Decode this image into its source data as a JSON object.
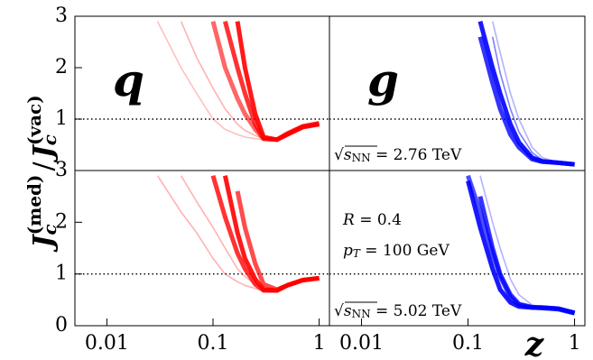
{
  "figure": {
    "ylabel": {
      "num": "J",
      "num_sub": "c",
      "num_sup": "(med)",
      "slash": "/",
      "den": "J",
      "den_sub": "c",
      "den_sup": "(vac)"
    },
    "xlabel": "z"
  },
  "chart_data": [
    {
      "type": "line",
      "label": "q",
      "label_color": "#ff0000",
      "xscale": "log",
      "xlim": [
        0.005,
        1.25
      ],
      "ylim": [
        0,
        3
      ],
      "yticks": [
        1,
        2,
        3
      ],
      "hline": 1,
      "x": [
        0.02,
        0.03,
        0.05,
        0.07,
        0.1,
        0.13,
        0.17,
        0.2,
        0.25,
        0.3,
        0.4,
        0.5,
        0.7,
        1
      ],
      "series": [
        {
          "color": "#ff0000",
          "alpha": 0.9,
          "values": [
            null,
            null,
            null,
            null,
            null,
            null,
            2.9,
            2.0,
            1.1,
            0.65,
            0.6,
            0.7,
            0.85,
            0.9
          ]
        },
        {
          "color": "#ff0000",
          "alpha": 0.8,
          "values": [
            null,
            null,
            null,
            null,
            null,
            2.9,
            2.0,
            1.5,
            0.9,
            0.62,
            0.6,
            0.72,
            0.86,
            0.92
          ]
        },
        {
          "color": "#ff0000",
          "alpha": 0.6,
          "values": [
            null,
            null,
            null,
            null,
            2.9,
            2.0,
            1.4,
            1.1,
            0.8,
            0.62,
            0.6,
            0.7,
            0.84,
            0.9
          ]
        },
        {
          "color": "#ff0000",
          "alpha": 0.3,
          "values": [
            null,
            null,
            2.9,
            2.2,
            1.6,
            1.2,
            0.9,
            0.78,
            0.68,
            0.62,
            0.62,
            0.7,
            0.85,
            0.9
          ]
        },
        {
          "color": "#ff0000",
          "alpha": 0.25,
          "values": [
            null,
            2.9,
            2.0,
            1.5,
            1.0,
            0.8,
            0.7,
            0.65,
            0.62,
            0.6,
            0.62,
            0.72,
            0.86,
            0.92
          ]
        }
      ]
    },
    {
      "type": "line",
      "label": "g",
      "label_color": "#0000ff",
      "xscale": "log",
      "xlim": [
        0.005,
        1.25
      ],
      "ylim": [
        0,
        3
      ],
      "hline": 1,
      "annotation": {
        "root": "√",
        "symbol": "s",
        "sub": "NN",
        "rest": " = 2.76 TeV"
      },
      "x": [
        0.02,
        0.03,
        0.05,
        0.07,
        0.1,
        0.13,
        0.17,
        0.2,
        0.25,
        0.3,
        0.4,
        0.5,
        0.7,
        1
      ],
      "series": [
        {
          "color": "#0000ff",
          "alpha": 0.9,
          "values": [
            null,
            null,
            null,
            null,
            null,
            2.9,
            2.0,
            1.5,
            0.9,
            0.55,
            0.25,
            0.18,
            0.15,
            0.12
          ]
        },
        {
          "color": "#0000ff",
          "alpha": 0.8,
          "values": [
            null,
            null,
            null,
            null,
            null,
            2.6,
            1.7,
            1.2,
            0.7,
            0.45,
            0.22,
            0.17,
            0.15,
            0.12
          ]
        },
        {
          "color": "#0000ff",
          "alpha": 0.5,
          "values": [
            null,
            null,
            null,
            null,
            null,
            null,
            2.6,
            1.9,
            1.2,
            0.75,
            0.35,
            0.2,
            0.15,
            0.12
          ]
        },
        {
          "color": "#0000ff",
          "alpha": 0.3,
          "values": [
            null,
            null,
            null,
            null,
            null,
            null,
            2.9,
            2.3,
            1.5,
            1.0,
            0.45,
            0.25,
            0.16,
            0.13
          ]
        }
      ]
    },
    {
      "type": "line",
      "xscale": "log",
      "xlim": [
        0.005,
        1.25
      ],
      "ylim": [
        0,
        3
      ],
      "yticks": [
        0,
        1,
        2,
        3
      ],
      "xticks": [
        0.01,
        0.1,
        1
      ],
      "hline": 1,
      "x": [
        0.02,
        0.03,
        0.05,
        0.07,
        0.1,
        0.13,
        0.17,
        0.2,
        0.25,
        0.3,
        0.4,
        0.5,
        0.7,
        1
      ],
      "series": [
        {
          "color": "#ff0000",
          "alpha": 0.9,
          "values": [
            null,
            null,
            null,
            null,
            null,
            2.9,
            1.8,
            1.3,
            0.9,
            0.7,
            0.68,
            0.78,
            0.88,
            0.92
          ]
        },
        {
          "color": "#ff0000",
          "alpha": 0.8,
          "values": [
            null,
            null,
            null,
            null,
            2.9,
            2.1,
            1.4,
            1.1,
            0.8,
            0.68,
            0.68,
            0.78,
            0.88,
            0.92
          ]
        },
        {
          "color": "#ff0000",
          "alpha": 0.7,
          "values": [
            null,
            null,
            null,
            null,
            null,
            null,
            2.6,
            1.9,
            1.2,
            0.8,
            0.7,
            0.78,
            0.88,
            0.92
          ]
        },
        {
          "color": "#ff0000",
          "alpha": 0.3,
          "values": [
            null,
            2.9,
            2.2,
            1.8,
            1.3,
            1.0,
            0.85,
            0.78,
            0.72,
            0.68,
            0.7,
            0.78,
            0.88,
            0.92
          ]
        },
        {
          "color": "#ff0000",
          "alpha": 0.3,
          "values": [
            null,
            null,
            2.9,
            2.4,
            1.9,
            1.5,
            1.1,
            0.95,
            0.8,
            0.72,
            0.7,
            0.78,
            0.88,
            0.92
          ]
        }
      ]
    },
    {
      "type": "line",
      "xscale": "log",
      "xlim": [
        0.005,
        1.25
      ],
      "ylim": [
        0,
        3
      ],
      "xticks": [
        0.01,
        0.1,
        1
      ],
      "hline": 1,
      "annotation": {
        "root": "√",
        "symbol": "s",
        "sub": "NN",
        "rest": " = 5.02 TeV"
      },
      "params": {
        "r_symbol": "R",
        "r_rest": " = 0.4",
        "pt_symbol": "p",
        "pt_sub": "T",
        "pt_rest": " = 100 GeV"
      },
      "x": [
        0.02,
        0.03,
        0.05,
        0.07,
        0.1,
        0.13,
        0.17,
        0.2,
        0.25,
        0.3,
        0.4,
        0.5,
        0.7,
        1
      ],
      "series": [
        {
          "color": "#0000ff",
          "alpha": 0.9,
          "values": [
            null,
            null,
            null,
            null,
            2.8,
            1.9,
            1.1,
            0.7,
            0.45,
            0.37,
            0.35,
            0.35,
            0.33,
            0.25
          ]
        },
        {
          "color": "#0000ff",
          "alpha": 0.8,
          "values": [
            null,
            null,
            null,
            null,
            null,
            2.5,
            1.5,
            1.0,
            0.6,
            0.42,
            0.36,
            0.35,
            0.33,
            0.25
          ]
        },
        {
          "color": "#0000ff",
          "alpha": 0.7,
          "values": [
            null,
            null,
            null,
            null,
            2.9,
            2.2,
            1.4,
            0.95,
            0.55,
            0.4,
            0.35,
            0.34,
            0.32,
            0.24
          ]
        },
        {
          "color": "#0000ff",
          "alpha": 0.3,
          "values": [
            null,
            null,
            null,
            null,
            null,
            2.9,
            2.0,
            1.5,
            0.9,
            0.6,
            0.4,
            0.36,
            0.33,
            0.25
          ]
        }
      ]
    }
  ]
}
